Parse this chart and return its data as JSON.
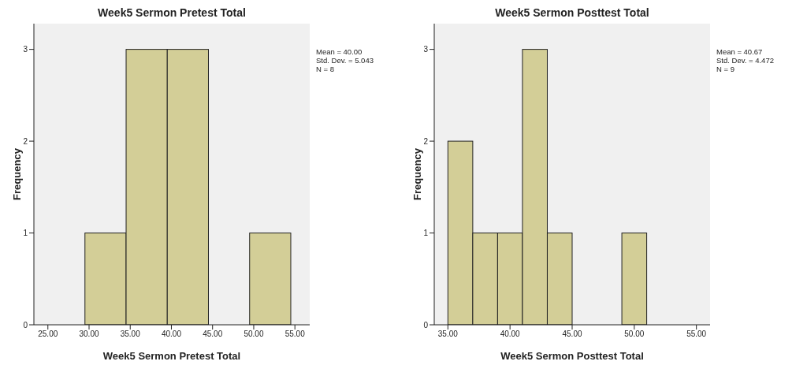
{
  "chart_data": [
    {
      "type": "histogram",
      "title": "Week5 Sermon Pretest Total",
      "xlabel": "Week5 Sermon Pretest Total",
      "ylabel": "Frequency",
      "bins": [
        29.5,
        34.5,
        39.5,
        44.5,
        49.5,
        54.5
      ],
      "values": [
        1,
        3,
        3,
        0,
        1
      ],
      "color": "#d3ce97",
      "xlim": [
        23.3,
        56.8
      ],
      "xticks": [
        {
          "value": 25,
          "label": "25.00"
        },
        {
          "value": 30,
          "label": "30.00"
        },
        {
          "value": 35,
          "label": "35.00"
        },
        {
          "value": 40,
          "label": "40.00"
        },
        {
          "value": 45,
          "label": "45.00"
        },
        {
          "value": 50,
          "label": "50.00"
        },
        {
          "value": 55,
          "label": "55.00"
        }
      ],
      "ylim": [
        0,
        3.28
      ],
      "yticks": [
        0,
        1,
        2,
        3
      ],
      "grid": false,
      "legend": false,
      "annotations": [
        "Mean = 40.00",
        "Std. Dev. = 5.043",
        "N = 8"
      ]
    },
    {
      "type": "histogram",
      "title": "Week5 Sermon Posttest Total",
      "xlabel": "Week5 Sermon Posttest Total",
      "ylabel": "Frequency",
      "bins": [
        35,
        37,
        39,
        41,
        43,
        45,
        47,
        49,
        51
      ],
      "values": [
        2,
        1,
        1,
        3,
        1,
        0,
        0,
        1
      ],
      "color": "#d3ce97",
      "xlim": [
        33.9,
        56.1
      ],
      "xticks": [
        {
          "value": 35,
          "label": "35.00"
        },
        {
          "value": 40,
          "label": "40.00"
        },
        {
          "value": 45,
          "label": "45.00"
        },
        {
          "value": 50,
          "label": "50.00"
        },
        {
          "value": 55,
          "label": "55.00"
        }
      ],
      "ylim": [
        0,
        3.28
      ],
      "yticks": [
        0,
        1,
        2,
        3
      ],
      "grid": false,
      "legend": false,
      "annotations": [
        "Mean = 40.67",
        "Std. Dev. = 4.472",
        "N = 9"
      ]
    }
  ]
}
